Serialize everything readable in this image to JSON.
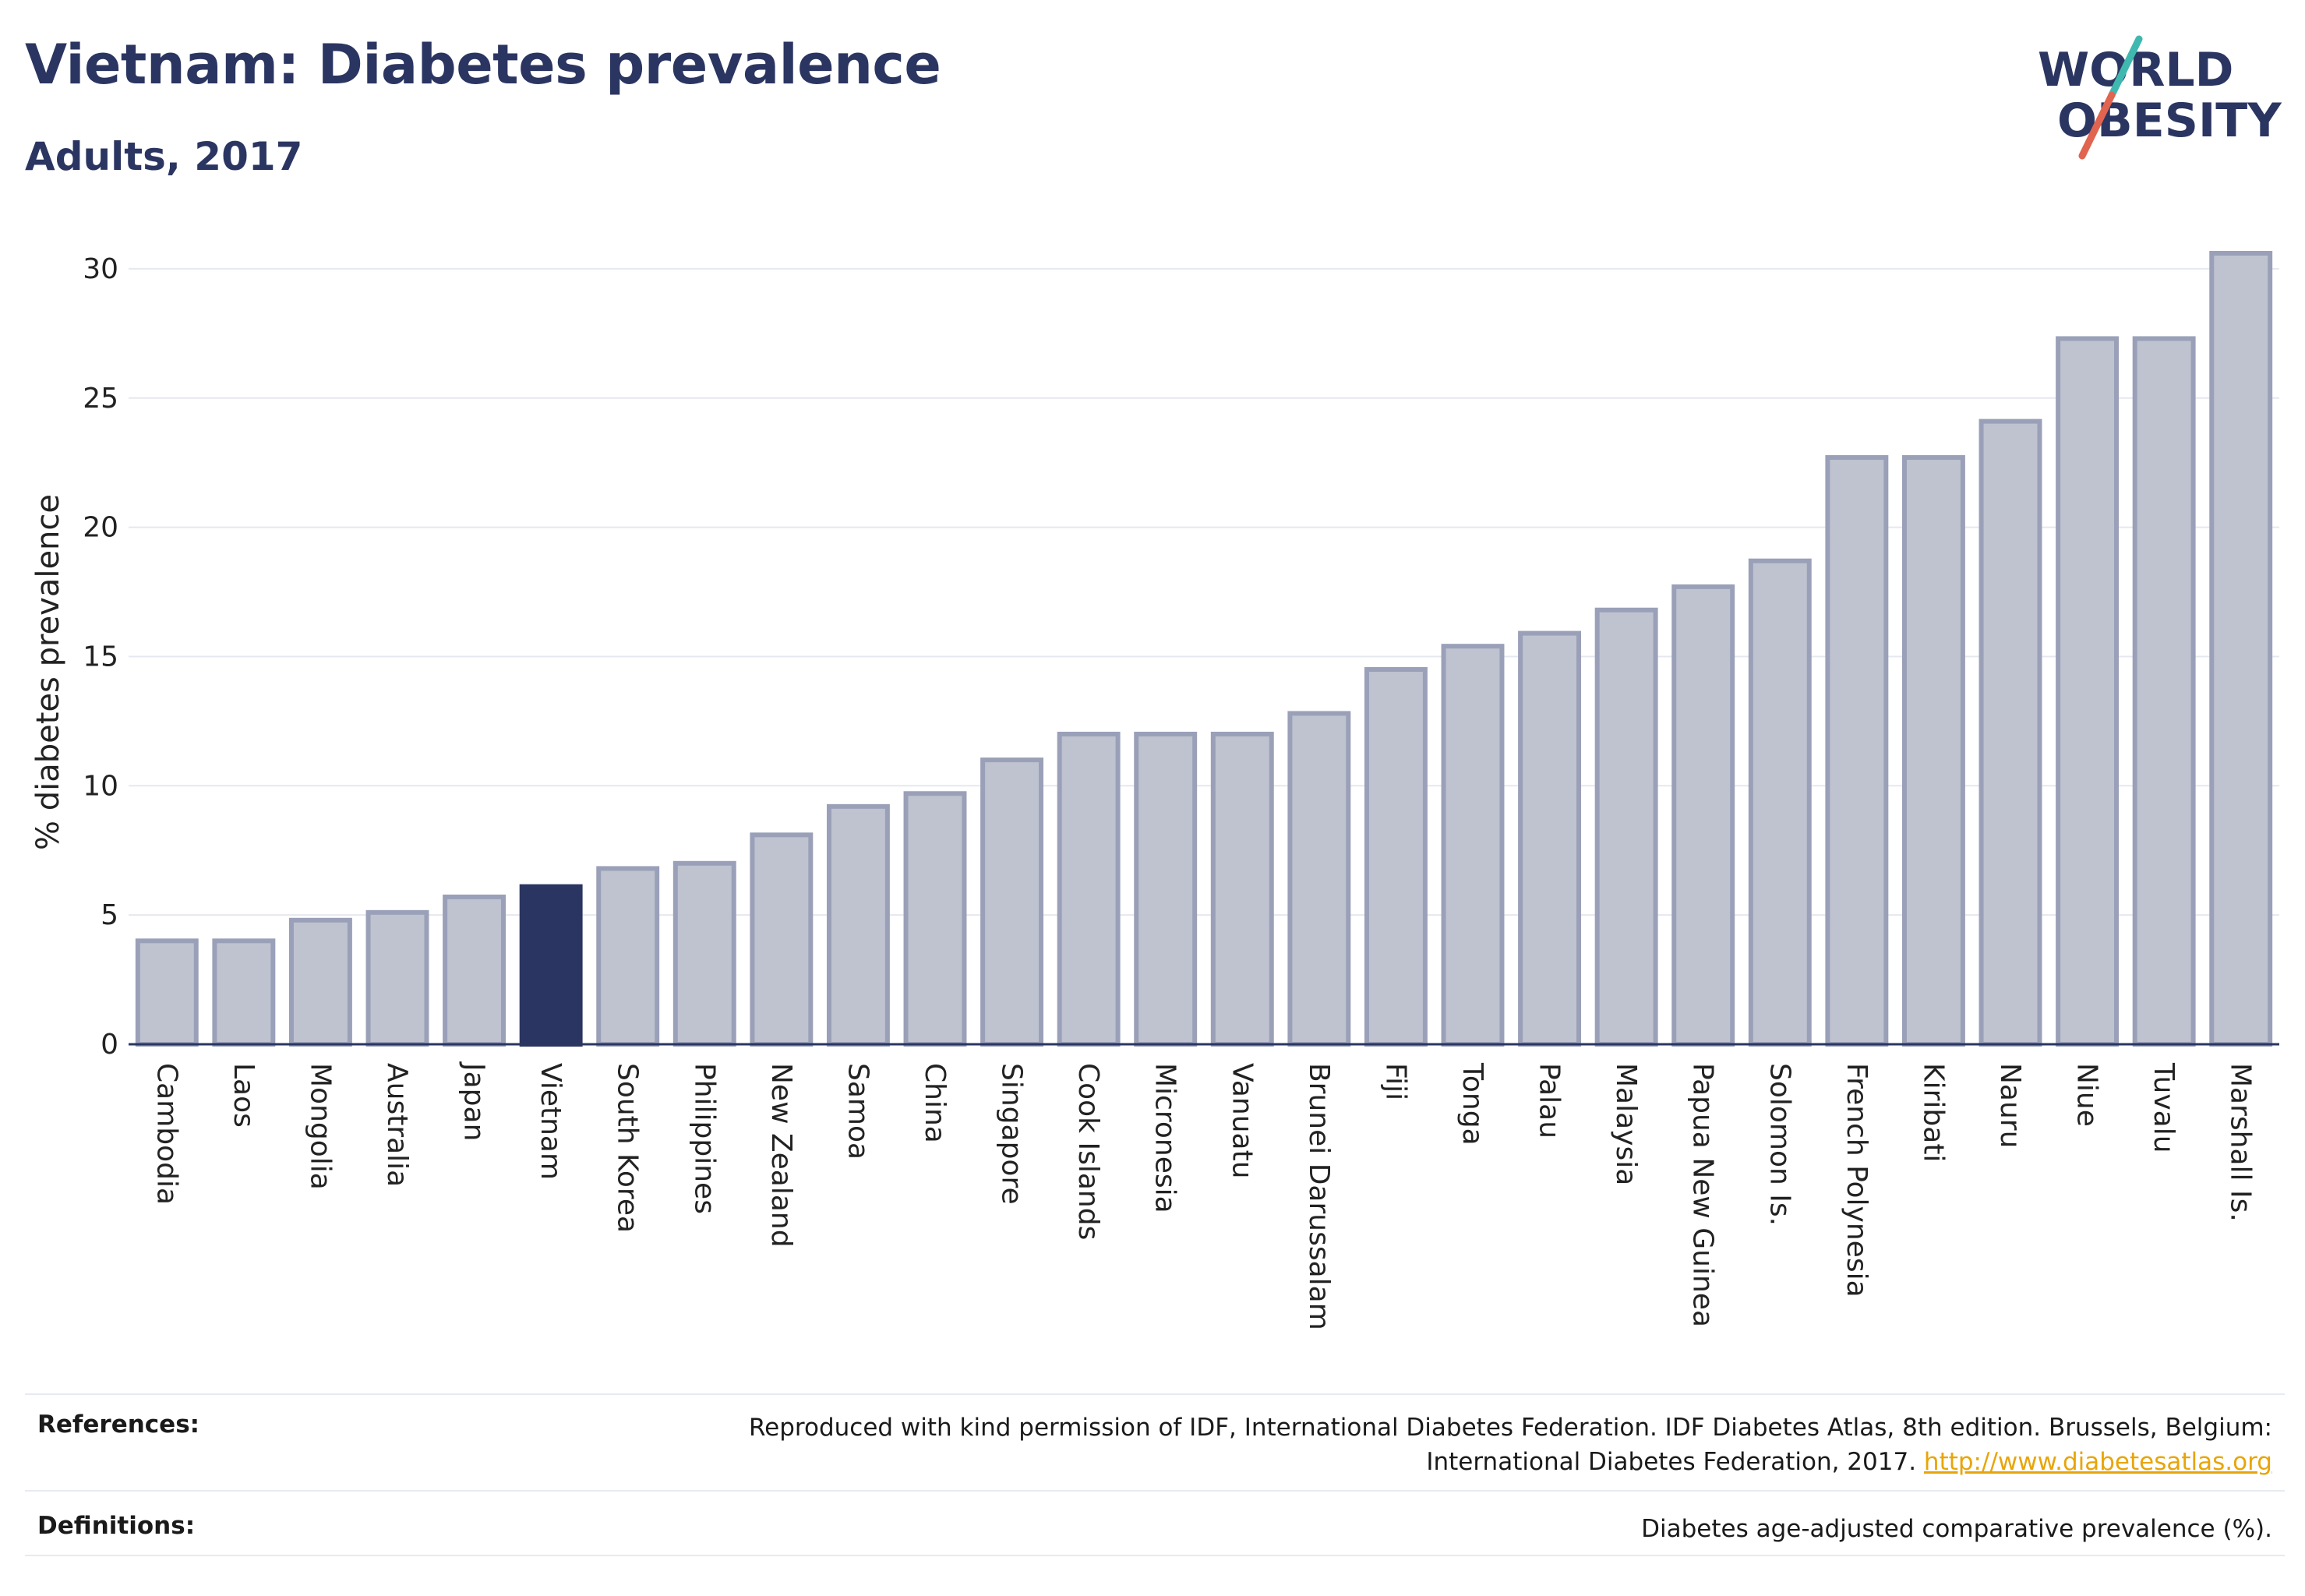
{
  "header": {
    "title": "Vietnam: Diabetes prevalence",
    "subtitle": "Adults, 2017"
  },
  "logo": {
    "line1": "WORLD",
    "line2": "OBESITY"
  },
  "colors": {
    "highlight": "#2b3561",
    "bar_fill": "#bfc3d0",
    "bar_stroke": "#9aa0b8",
    "logo_slash_teal": "#3fb8b0",
    "logo_slash_red": "#e0644f",
    "link": "#e8a50a"
  },
  "chart_data": {
    "type": "bar",
    "ylabel": "% diabetes prevalence",
    "xlabel": "",
    "ylim": [
      0,
      30.6
    ],
    "yticks": [
      0,
      5,
      10,
      15,
      20,
      25,
      30
    ],
    "grid": true,
    "highlight": "Vietnam",
    "categories": [
      "Cambodia",
      "Laos",
      "Mongolia",
      "Australia",
      "Japan",
      "Vietnam",
      "South Korea",
      "Philippines",
      "New Zealand",
      "Samoa",
      "China",
      "Singapore",
      "Cook Islands",
      "Micronesia",
      "Vanuatu",
      "Brunei Darussalam",
      "Fiji",
      "Tonga",
      "Palau",
      "Malaysia",
      "Papua New Guinea",
      "Solomon Is.",
      "French Polynesia",
      "Kiribati",
      "Nauru",
      "Niue",
      "Tuvalu",
      "Marshall Is."
    ],
    "values": [
      4.0,
      4.0,
      4.8,
      5.1,
      5.7,
      6.1,
      6.8,
      7.0,
      8.1,
      9.2,
      9.7,
      11.0,
      12.0,
      12.0,
      12.0,
      12.8,
      14.5,
      15.4,
      15.9,
      16.8,
      17.7,
      18.7,
      22.7,
      22.7,
      24.1,
      27.3,
      27.3,
      30.6
    ]
  },
  "footer": {
    "references_label": "References:",
    "references_text": "Reproduced with kind permission of IDF, International Diabetes Federation. IDF Diabetes Atlas, 8th edition. Brussels, Belgium:",
    "references_text2": "International Diabetes Federation, 2017.",
    "references_link": "http://www.diabetesatlas.org",
    "definitions_label": "Definitions:",
    "definitions_text": "Diabetes age-adjusted comparative prevalence (%)."
  }
}
